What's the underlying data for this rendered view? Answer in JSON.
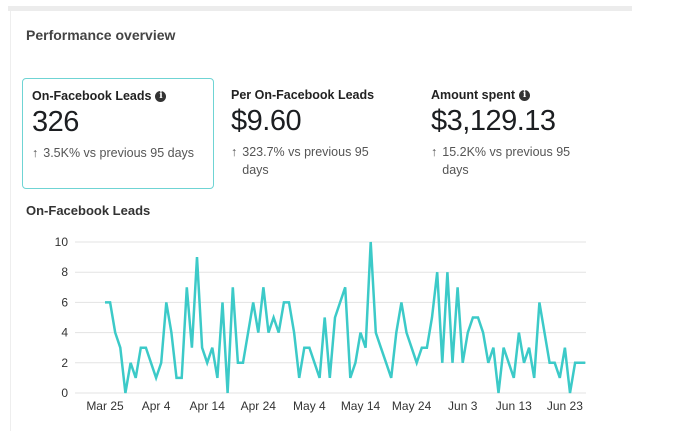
{
  "header": {
    "title": "Performance overview"
  },
  "kpis": [
    {
      "label": "On-Facebook Leads",
      "value": "326",
      "change": "3.5K% vs previous 95 days",
      "info": true,
      "selected": true
    },
    {
      "label": "Per On-Facebook Leads",
      "value": "$9.60",
      "change": "323.7% vs previous 95 days",
      "info": false,
      "selected": false
    },
    {
      "label": "Amount spent",
      "value": "$3,129.13",
      "change": "15.2K% vs previous 95 days",
      "info": true,
      "selected": false
    }
  ],
  "chart_data": {
    "type": "line",
    "title": "On-Facebook Leads",
    "series": [
      {
        "name": "On-Facebook Leads",
        "color": "#3ccac8",
        "start_date": "Mar 25",
        "values": [
          6,
          6,
          4,
          3,
          0,
          2,
          1,
          3,
          3,
          2,
          1,
          2,
          6,
          4,
          1,
          1,
          7,
          3,
          9,
          3,
          2,
          3,
          1,
          6,
          0,
          7,
          2,
          2,
          4,
          6,
          4,
          7,
          4,
          5,
          4,
          6,
          6,
          4,
          1,
          3,
          3,
          2,
          1,
          5,
          1,
          5,
          6,
          7,
          1,
          2,
          4,
          3,
          10,
          4,
          3,
          2,
          1,
          4,
          6,
          4,
          3,
          2,
          3,
          3,
          5,
          8,
          2,
          8,
          2,
          7,
          2,
          4,
          5,
          5,
          4,
          2,
          3,
          0,
          3,
          2,
          1,
          4,
          2,
          3,
          1,
          6,
          4,
          2,
          2,
          1,
          3,
          0,
          2,
          2,
          2
        ]
      }
    ],
    "x_tick_labels": [
      "Mar 25",
      "Apr 4",
      "Apr 14",
      "Apr 24",
      "May 4",
      "May 14",
      "May 24",
      "Jun 3",
      "Jun 13",
      "Jun 23"
    ],
    "x_tick_interval_days": 10,
    "y_ticks": [
      0,
      2,
      4,
      6,
      8,
      10
    ],
    "ylim": [
      0,
      10
    ],
    "grid": true
  }
}
